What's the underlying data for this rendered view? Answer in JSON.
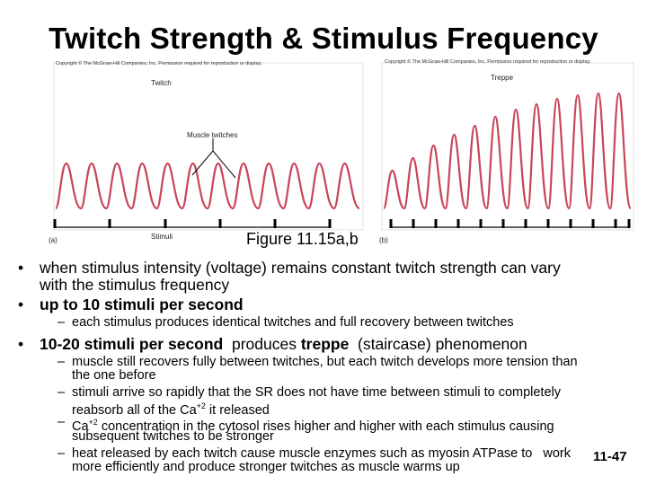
{
  "title": "Twitch Strength & Stimulus Frequency",
  "figure": {
    "left_panel": {
      "copyright": "Copyright © The McGraw-Hill Companies, Inc. Permission required for reproduction or display.",
      "label": "Twitch",
      "annotation": "Muscle twitches",
      "stimuli_label": "Stimuli",
      "part_label": "(a)"
    },
    "right_panel": {
      "copyright": "Copyright © The McGraw-Hill Companies, Inc. Permission required for reproduction or display.",
      "label": "Treppe",
      "part_label": "(b)"
    },
    "caption": "Figure 11.15a,b",
    "colors": {
      "trace": "#c8455a",
      "frame": "#d9d9d9",
      "ticks": "#000000"
    }
  },
  "bullets": {
    "b1": {
      "line1": "when stimulus intensity (voltage) remains constant twitch strength can vary",
      "line2": "with the stimulus frequency"
    },
    "b2": {
      "text": "up to 10 stimuli per second"
    },
    "b2_sub": {
      "text": "each stimulus produces identical twitches and full recovery between twitches"
    },
    "b3": {
      "bold1": "10-20 stimuli per second",
      "mid": "  produces ",
      "bold2": "treppe",
      "rest": "  (staircase) phenomenon"
    },
    "sub1": {
      "line1": "muscle still recovers fully between twitches, but each twitch develops more tension than",
      "line2": "the one before"
    },
    "sub2": {
      "line1": "stimuli arrive so rapidly that the SR does not have time between stimuli to completely",
      "line2a": "reabsorb all of the Ca",
      "sup": "+2",
      "line2b": " it released"
    },
    "sub3": {
      "line1a": "Ca",
      "sup": "+2",
      "line1b": " concentration in the cytosol rises higher and higher with each stimulus causing",
      "line2": "subsequent twitches to be stronger"
    },
    "sub4": {
      "line1": "heat released by each twitch cause muscle enzymes such as myosin ATPase to   work",
      "line2": "more efficiently and produce stronger twitches as muscle warms up"
    },
    "markers": {
      "bullet": "•",
      "dash": "–"
    }
  },
  "page_number": "11-47"
}
